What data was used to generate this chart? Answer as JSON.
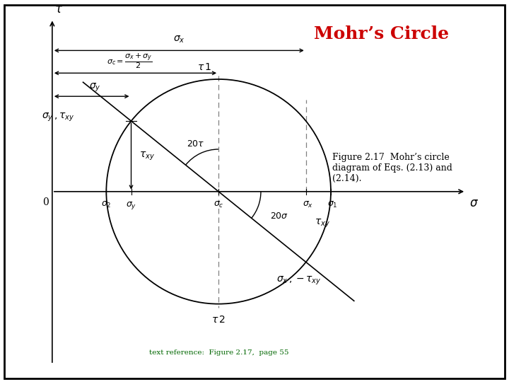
{
  "title": "Mohr’s Circle",
  "title_color": "#CC0000",
  "title_fontsize": 18,
  "background_color": "#ffffff",
  "figure_caption": "Figure 2.17  Mohr’s circle\ndiagram of Eqs. (2.13) and\n(2.14).",
  "text_reference": "text reference:  Figure 2.17,  page 55",
  "border_color": "#000000",
  "axis_color": "#000000",
  "circle_color": "#000000",
  "line_color": "#000000",
  "dashed_color": "#888888",
  "serif_font": "DejaVu Serif"
}
